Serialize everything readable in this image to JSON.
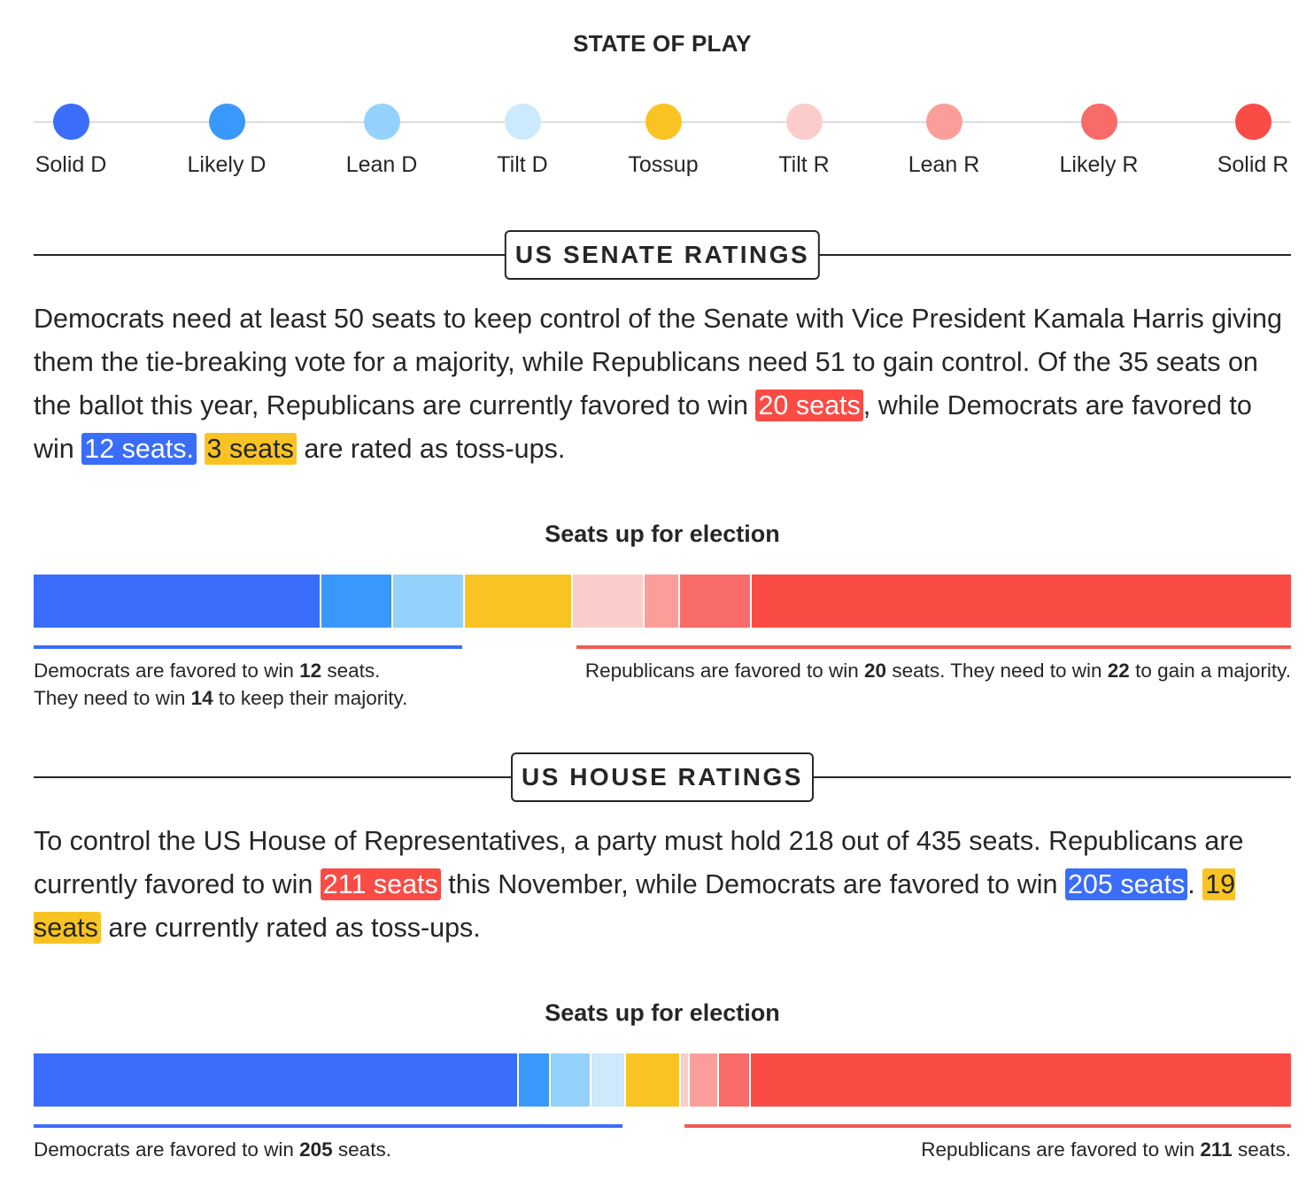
{
  "state_of_play": {
    "title": "STATE OF PLAY",
    "legend": [
      {
        "label": "Solid D",
        "color": "#3a6dfa"
      },
      {
        "label": "Likely D",
        "color": "#3998fb"
      },
      {
        "label": "Lean D",
        "color": "#94d2fb"
      },
      {
        "label": "Tilt D",
        "color": "#cde9fc"
      },
      {
        "label": "Tossup",
        "color": "#f9c423"
      },
      {
        "label": "Tilt R",
        "color": "#fccccb"
      },
      {
        "label": "Lean R",
        "color": "#fb9e9a"
      },
      {
        "label": "Likely R",
        "color": "#f86b68"
      },
      {
        "label": "Solid R",
        "color": "#fa4b45"
      }
    ]
  },
  "senate": {
    "heading": "US SENATE RATINGS",
    "para": {
      "t1": "Democrats need at least 50 seats to keep control of the Senate with Vice President Kamala Harris giving them the tie-breaking vote for a majority, while Republicans need 51 to gain control. Of the 35 seats on the ballot this year, Republicans are currently favored to win ",
      "rep": "20 seats",
      "t2": ", while Democrats are favored to win ",
      "dem": "12 seats.",
      "t3": " ",
      "toss": "3 seats",
      "t4": " are rated as toss-ups."
    },
    "bar_title": "Seats up for election",
    "dem_note": {
      "a": "Democrats are favored to win ",
      "b": "12",
      "c": " seats.",
      "d": "They need to win ",
      "e": "14",
      "f": " to keep their majority."
    },
    "rep_note": {
      "a": "Republicans are favored to win ",
      "b": "20",
      "c": " seats. They need to win ",
      "d": "22",
      "e": " to gain a majority."
    }
  },
  "house": {
    "heading": "US HOUSE RATINGS",
    "para": {
      "t1": "To control the US House of Representatives, a party must hold 218 out of 435 seats. Republicans are currently favored to win ",
      "rep": "211 seats",
      "t2": " this November, while Democrats are favored to win ",
      "dem": "205 seats",
      "t3": ". ",
      "toss": "19 seats",
      "t4": " are currently rated as toss-ups."
    },
    "bar_title": "Seats up for election",
    "dem_note": {
      "a": "Democrats are favored to win ",
      "b": "205",
      "c": " seats."
    },
    "rep_note": {
      "a": "Republicans are favored to win ",
      "b": "211",
      "c": " seats."
    }
  },
  "chart_data": [
    {
      "type": "bar",
      "title": "Seats up for election",
      "orientation": "horizontal-stacked",
      "categories": [
        "Solid D",
        "Likely D",
        "Lean D",
        "Tilt D",
        "Tossup",
        "Tilt R",
        "Lean R",
        "Likely R",
        "Solid R"
      ],
      "values": [
        8,
        2,
        2,
        0,
        3,
        2,
        1,
        2,
        15
      ],
      "colors": [
        "#3a6dfa",
        "#3998fb",
        "#94d2fb",
        "#cde9fc",
        "#f9c423",
        "#fccccb",
        "#fb9e9a",
        "#f86b68",
        "#fa4b45"
      ],
      "total": 35
    },
    {
      "type": "bar",
      "title": "Seats up for election",
      "orientation": "horizontal-stacked",
      "categories": [
        "Solid D",
        "Likely D",
        "Lean D",
        "Tilt D",
        "Tossup",
        "Tilt R",
        "Lean R",
        "Likely R",
        "Solid R"
      ],
      "values": [
        168,
        11,
        14,
        12,
        19,
        3,
        10,
        11,
        187
      ],
      "colors": [
        "#3a6dfa",
        "#3998fb",
        "#94d2fb",
        "#cde9fc",
        "#f9c423",
        "#fccccb",
        "#fb9e9a",
        "#f86b68",
        "#fa4b45"
      ],
      "total": 435
    }
  ]
}
